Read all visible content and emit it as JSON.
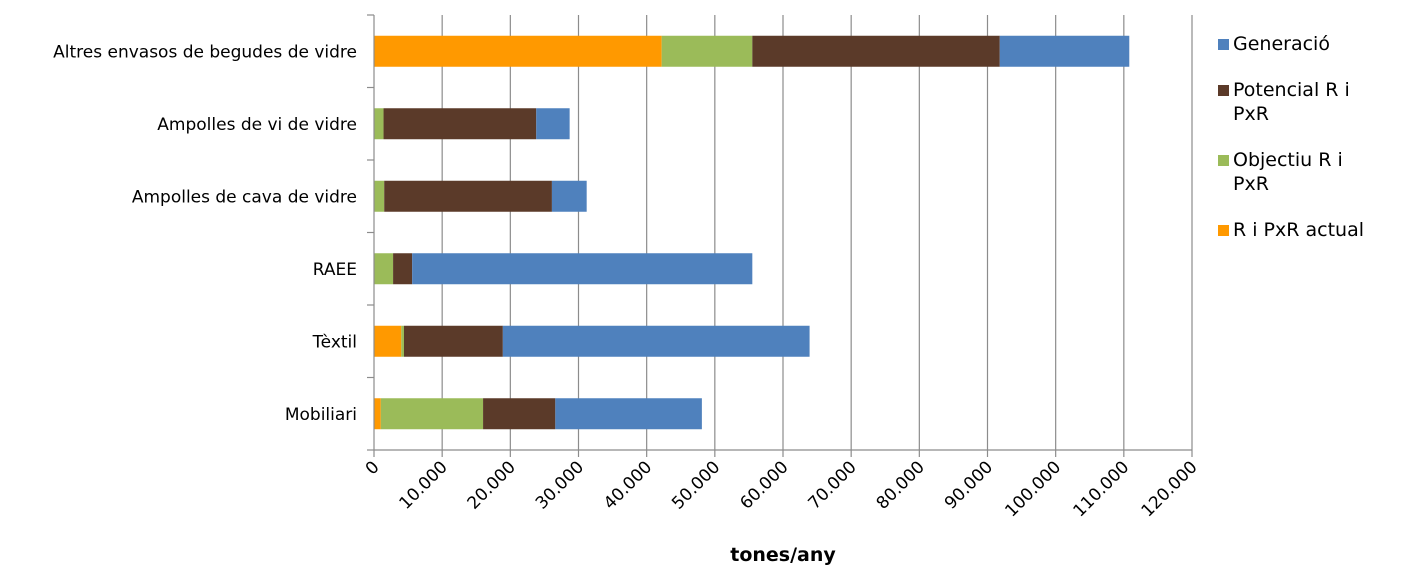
{
  "chart_data": {
    "type": "bar",
    "orientation": "horizontal",
    "stacked": true,
    "categories": [
      "Altres envasos de begudes de vidre",
      "Ampolles de vi de vidre",
      "Ampolles de cava de vidre",
      "RAEE",
      "Tèxtil",
      "Mobiliari"
    ],
    "series": [
      {
        "name": "R i PxR actual",
        "color": "#ff9900",
        "values": [
          42200,
          0,
          0,
          0,
          4000,
          1000
        ]
      },
      {
        "name": "Objectiu R i PxR",
        "color": "#9bbb59",
        "values": [
          13300,
          1400,
          1500,
          2800,
          400,
          15000
        ]
      },
      {
        "name": "Potencial R i PxR",
        "color": "#5b3a29",
        "values": [
          36300,
          22400,
          24600,
          2800,
          14500,
          10600
        ]
      },
      {
        "name": "Generació",
        "color": "#4f81bd",
        "values": [
          19000,
          4900,
          5100,
          49900,
          45000,
          21500
        ]
      }
    ],
    "legend_order": [
      "Generació",
      "Potencial R i PxR",
      "Objectiu R i PxR",
      "R i PxR actual"
    ],
    "legend_lines": {
      "Generació": [
        "Generació"
      ],
      "Potencial R i PxR": [
        "Potencial R i",
        "PxR"
      ],
      "Objectiu R i PxR": [
        "Objectiu R i",
        "PxR"
      ],
      "R i PxR actual": [
        "R i PxR actual"
      ]
    },
    "xticks": [
      "0",
      "10.000",
      "20.000",
      "30.000",
      "40.000",
      "50.000",
      "60.000",
      "70.000",
      "80.000",
      "90.000",
      "100.000",
      "110.000",
      "120.000"
    ],
    "xlim": [
      0,
      120000
    ],
    "xlabel": "tones/any",
    "ylabel": "",
    "title": "",
    "grid": "vertical",
    "legend_position": "right"
  }
}
